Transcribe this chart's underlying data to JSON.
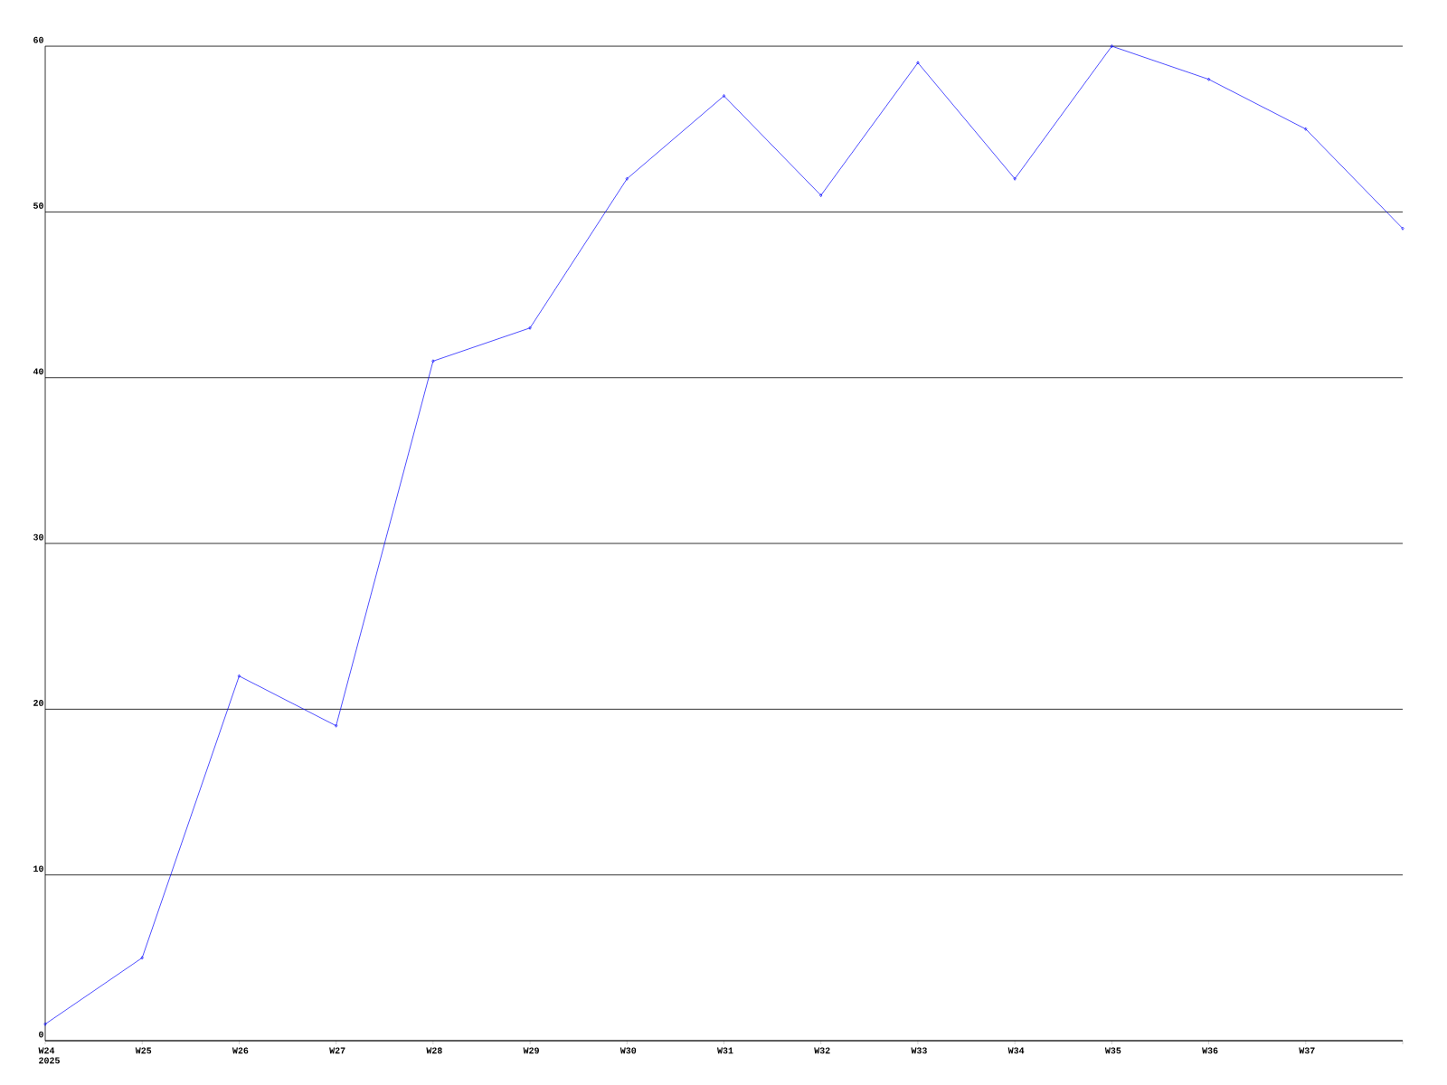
{
  "chart_data": {
    "type": "line",
    "categories": [
      "W24",
      "W25",
      "W26",
      "W27",
      "W28",
      "W29",
      "W30",
      "W31",
      "W32",
      "W33",
      "W34",
      "W35",
      "W36",
      "W37",
      null
    ],
    "series": [
      {
        "color": "#0000ff",
        "values": [
          1,
          5,
          22,
          19,
          41,
          43,
          52,
          57,
          51,
          59,
          52,
          60,
          58,
          55,
          49
        ]
      }
    ],
    "ylim": [
      0,
      60
    ],
    "yticks": [
      0,
      10,
      20,
      30,
      40,
      50,
      60
    ],
    "grid": "y",
    "marker": "diamond",
    "line_style": "solid",
    "annotations": [
      "2025"
    ]
  }
}
